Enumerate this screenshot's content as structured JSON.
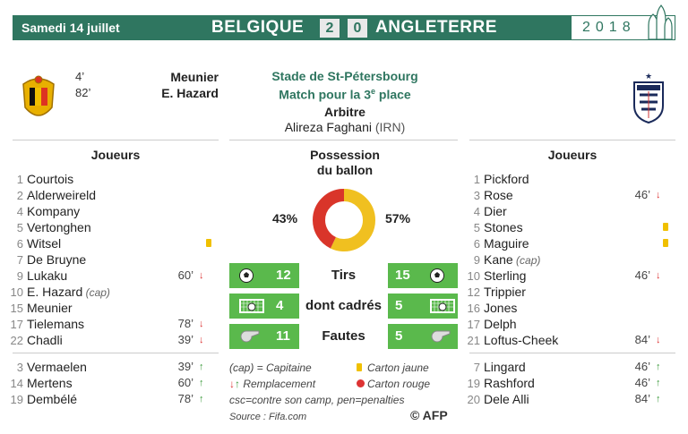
{
  "header": {
    "date": "Samedi 14 juillet",
    "home_team": "BELGIQUE",
    "home_score": "2",
    "away_score": "0",
    "away_team": "ANGLETERRE",
    "year": "2018"
  },
  "goals": [
    {
      "minute": "4’",
      "scorer": "Meunier"
    },
    {
      "minute": "82’",
      "scorer": "E. Hazard"
    }
  ],
  "match": {
    "stadium": "Stade de St-Pétersbourg",
    "stage": "Match pour la 3",
    "stage_sup": "e",
    "stage_end": " place",
    "referee_title": "Arbitre",
    "referee_name": "Alireza Faghani",
    "referee_country": "(IRN)"
  },
  "home_column_title": "Joueurs",
  "away_column_title": "Joueurs",
  "home_players": [
    {
      "num": "1",
      "name": "Courtois"
    },
    {
      "num": "2",
      "name": "Alderweireld"
    },
    {
      "num": "4",
      "name": "Kompany"
    },
    {
      "num": "5",
      "name": "Vertonghen"
    },
    {
      "num": "6",
      "name": "Witsel",
      "card": "yellow"
    },
    {
      "num": "7",
      "name": "De Bruyne"
    },
    {
      "num": "9",
      "name": "Lukaku",
      "minute": "60’",
      "sub": "off"
    },
    {
      "num": "10",
      "name": "E. Hazard",
      "cap": "(cap)"
    },
    {
      "num": "15",
      "name": "Meunier"
    },
    {
      "num": "17",
      "name": "Tielemans",
      "minute": "78’",
      "sub": "off"
    },
    {
      "num": "22",
      "name": "Chadli",
      "minute": "39’",
      "sub": "off"
    }
  ],
  "home_subs": [
    {
      "num": "3",
      "name": "Vermaelen",
      "minute": "39’",
      "sub": "on"
    },
    {
      "num": "14",
      "name": "Mertens",
      "minute": "60’",
      "sub": "on"
    },
    {
      "num": "19",
      "name": "Dembélé",
      "minute": "78’",
      "sub": "on"
    }
  ],
  "away_players": [
    {
      "num": "1",
      "name": "Pickford"
    },
    {
      "num": "3",
      "name": "Rose",
      "minute": "46’",
      "sub": "off"
    },
    {
      "num": "4",
      "name": "Dier"
    },
    {
      "num": "5",
      "name": "Stones",
      "card": "yellow"
    },
    {
      "num": "6",
      "name": "Maguire",
      "card": "yellow"
    },
    {
      "num": "9",
      "name": "Kane",
      "cap": "(cap)"
    },
    {
      "num": "10",
      "name": "Sterling",
      "minute": "46’",
      "sub": "off"
    },
    {
      "num": "12",
      "name": "Trippier"
    },
    {
      "num": "16",
      "name": "Jones"
    },
    {
      "num": "17",
      "name": "Delph"
    },
    {
      "num": "21",
      "name": "Loftus-Cheek",
      "minute": "84’",
      "sub": "off"
    }
  ],
  "away_subs": [
    {
      "num": "7",
      "name": "Lingard",
      "minute": "46’",
      "sub": "on"
    },
    {
      "num": "19",
      "name": "Rashford",
      "minute": "46’",
      "sub": "on"
    },
    {
      "num": "20",
      "name": "Dele Alli",
      "minute": "84’",
      "sub": "on"
    }
  ],
  "possession": {
    "title_line1": "Possession",
    "title_line2": "du ballon",
    "home_label": "43%",
    "away_label": "57%",
    "home_value": 43,
    "away_value": 57,
    "home_color": "#d9352a",
    "away_color": "#f0c020"
  },
  "stats": [
    {
      "label": "Tirs",
      "home": "12",
      "away": "15",
      "icon": "ball-icon"
    },
    {
      "label": "dont cadrés",
      "home": "4",
      "away": "5",
      "icon": "goal-net-icon"
    },
    {
      "label": "Fautes",
      "home": "11",
      "away": "5",
      "icon": "whistle-icon"
    }
  ],
  "legend": {
    "captain": "(cap) = Capitaine",
    "yellow": "Carton jaune",
    "replacement": "Remplacement",
    "red": "Carton rouge",
    "abbrev": "csc=contre son camp, pen=penalties",
    "source": "Source : Fifa.com",
    "credit": "© AFP"
  },
  "colors": {
    "brand_green": "#2f7660",
    "stat_green": "#5ab94c",
    "yellow_card": "#f0c000",
    "red_card": "#dd3333"
  }
}
